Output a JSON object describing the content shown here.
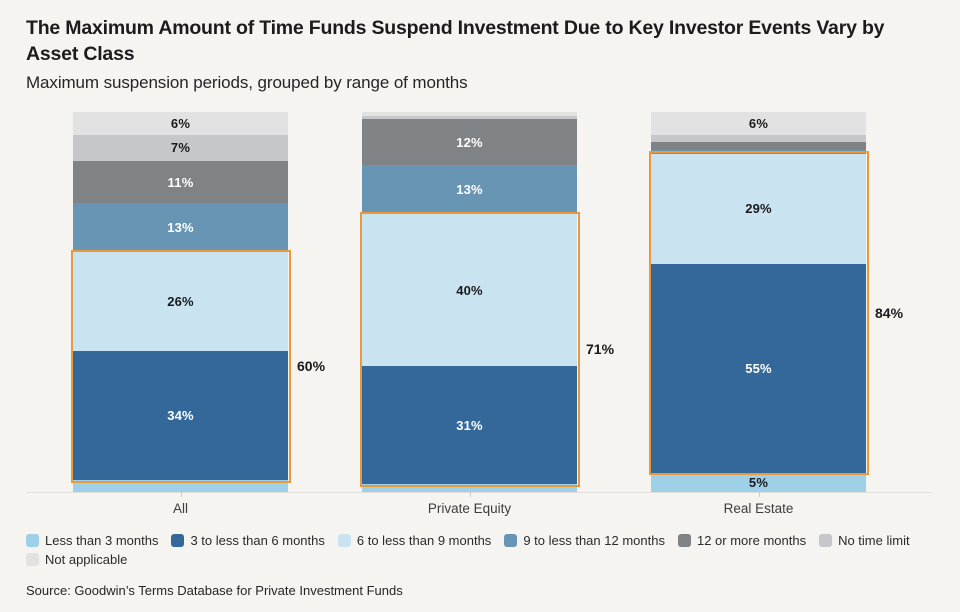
{
  "header": {
    "title": "The Maximum Amount of Time Funds Suspend Investment Due to Key Investor Events Vary by Asset Class",
    "subtitle": "Maximum suspension periods, grouped by range of months"
  },
  "source": "Source: Goodwin’s Terms Database for Private Investment Funds",
  "colors": {
    "background": "#f5f4f1",
    "bracket": "#e8993c",
    "axis_line": "#e2e0dd",
    "text_dark": "#1a1a1a",
    "text_light": "#ffffff"
  },
  "chart_data": {
    "type": "bar",
    "stacked": true,
    "grid": false,
    "legend_position": "bottom",
    "ylim": [
      0,
      100
    ],
    "unit": "%",
    "categories": [
      "All",
      "Private Equity",
      "Real Estate"
    ],
    "series": [
      {
        "name": "Less than 3 months",
        "color": "#9ed0e8",
        "text_color": "#1a1a1a",
        "values": [
          3,
          2,
          5
        ],
        "labels": [
          "",
          "",
          "5%"
        ]
      },
      {
        "name": "3 to less than 6 months",
        "color": "#35689a",
        "text_color": "#ffffff",
        "values": [
          34,
          31,
          55
        ],
        "labels": [
          "34%",
          "31%",
          "55%"
        ]
      },
      {
        "name": "6 to less than 9 months",
        "color": "#c9e3f1",
        "text_color": "#1a1a1a",
        "values": [
          26,
          40,
          29
        ],
        "labels": [
          "26%",
          "40%",
          "29%"
        ]
      },
      {
        "name": "9 to less than 12 months",
        "color": "#6995b5",
        "text_color": "#ffffff",
        "values": [
          13,
          13,
          1
        ],
        "labels": [
          "13%",
          "13%",
          ""
        ]
      },
      {
        "name": "12 or more months",
        "color": "#808386",
        "text_color": "#ffffff",
        "values": [
          11,
          12,
          2
        ],
        "labels": [
          "11%",
          "12%",
          ""
        ]
      },
      {
        "name": "No time limit",
        "color": "#c6c7cb",
        "text_color": "#1a1a1a",
        "values": [
          7,
          1,
          2
        ],
        "labels": [
          "7%",
          "",
          ""
        ]
      },
      {
        "name": "Not applicable",
        "color": "#e2e2e3",
        "text_color": "#1a1a1a",
        "values": [
          6,
          1,
          6
        ],
        "labels": [
          "6%",
          "",
          "6%"
        ]
      }
    ],
    "highlight_brackets": [
      {
        "category": "All",
        "label": "60%",
        "series": [
          "6 to less than 9 months",
          "3 to less than 6 months"
        ]
      },
      {
        "category": "Private Equity",
        "label": "71%",
        "series": [
          "6 to less than 9 months",
          "3 to less than 6 months"
        ]
      },
      {
        "category": "Real Estate",
        "label": "84%",
        "series": [
          "6 to less than 9 months",
          "3 to less than 6 months"
        ]
      }
    ]
  }
}
